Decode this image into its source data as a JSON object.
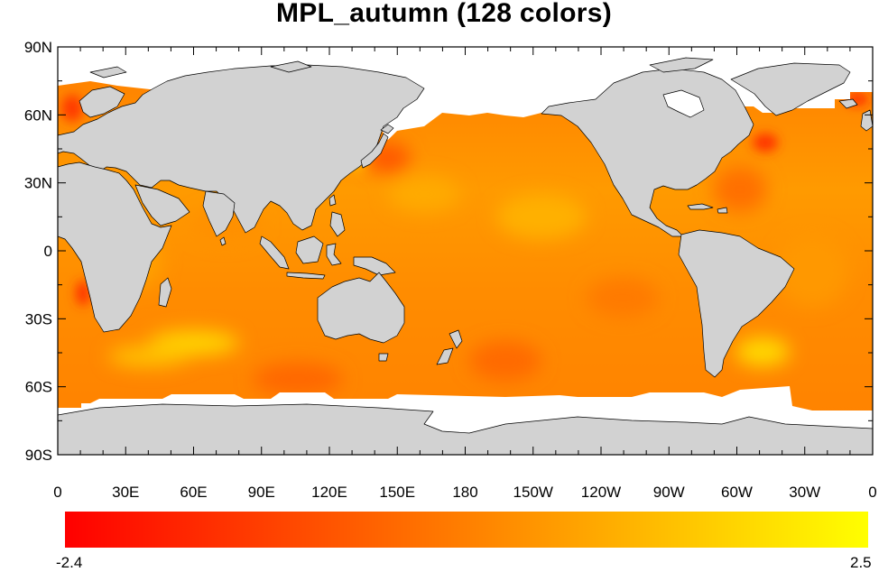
{
  "title": "MPL_autumn (128 colors)",
  "map": {
    "projection": "cylindrical-equidistant",
    "lon_range": [
      0,
      360
    ],
    "lat_range": [
      -90,
      90
    ],
    "land_color": "#d2d2d2",
    "missing_color": "#ffffff",
    "coastline_color": "#000000"
  },
  "lat_ticks": [
    {
      "value": 90,
      "label": "90N"
    },
    {
      "value": 60,
      "label": "60N"
    },
    {
      "value": 30,
      "label": "30N"
    },
    {
      "value": 0,
      "label": "0"
    },
    {
      "value": -30,
      "label": "30S"
    },
    {
      "value": -60,
      "label": "60S"
    },
    {
      "value": -90,
      "label": "90S"
    }
  ],
  "lon_ticks": [
    {
      "value": 0,
      "label": "0"
    },
    {
      "value": 30,
      "label": "30E"
    },
    {
      "value": 60,
      "label": "60E"
    },
    {
      "value": 90,
      "label": "90E"
    },
    {
      "value": 120,
      "label": "120E"
    },
    {
      "value": 150,
      "label": "150E"
    },
    {
      "value": 180,
      "label": "180"
    },
    {
      "value": 210,
      "label": "150W"
    },
    {
      "value": 240,
      "label": "120W"
    },
    {
      "value": 270,
      "label": "90W"
    },
    {
      "value": 300,
      "label": "60W"
    },
    {
      "value": 330,
      "label": "30W"
    },
    {
      "value": 360,
      "label": "0"
    }
  ],
  "colorbar": {
    "colormap": "MPL_autumn",
    "n_colors": 128,
    "color_low": "#ff0000",
    "color_high": "#ffff00",
    "min": -2.4,
    "max": 2.5,
    "min_label": "-2.4",
    "max_label": "2.5"
  }
}
